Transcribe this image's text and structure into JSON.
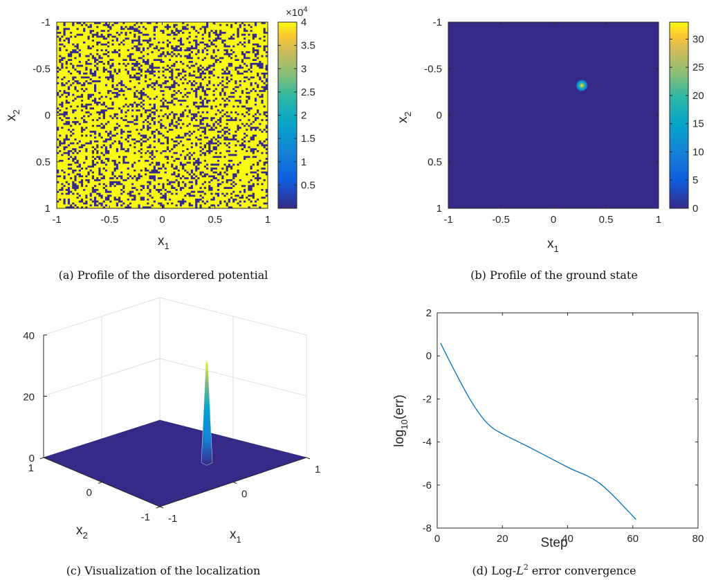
{
  "captions": {
    "a": "(a) Profile of the disordered potential",
    "b": "(b) Profile of the ground state",
    "c": "(c) Visualization of the localization",
    "d_prefix": "(d) Log-",
    "d_var": "L",
    "d_sup": "2",
    "d_suffix": " error convergence"
  },
  "colors": {
    "parula_low": "#352a87",
    "parula_high": "#f9fb0e",
    "line": "#0072bd",
    "axis": "#262626",
    "grid": "#dfdfdf"
  },
  "chart_data": [
    {
      "id": "a",
      "type": "heatmap",
      "xlabel_main": "x",
      "xlabel_sub": "1",
      "ylabel_main": "x",
      "ylabel_sub": "2",
      "xlim": [
        -1,
        1
      ],
      "ylim": [
        -1,
        1
      ],
      "y_reversed": true,
      "xticks": [
        "-1",
        "-0.5",
        "0",
        "0.5",
        "1"
      ],
      "yticks": [
        "-1",
        "-0.5",
        "0",
        "0.5",
        "1"
      ],
      "colorbar": {
        "range": [
          1,
          40000
        ],
        "ticks": [
          "0.5",
          "1",
          "1.5",
          "2",
          "2.5",
          "3",
          "3.5",
          "4"
        ],
        "tick_values": [
          0.5,
          1,
          1.5,
          2,
          2.5,
          3,
          3.5,
          4
        ],
        "scale_label": "×10",
        "scale_exp": "4"
      },
      "values_description_fraction_high": 0.72,
      "high_value": 40000,
      "low_value": 1
    },
    {
      "id": "b",
      "type": "heatmap",
      "xlabel_main": "x",
      "xlabel_sub": "1",
      "ylabel_main": "x",
      "ylabel_sub": "2",
      "xlim": [
        -1,
        1
      ],
      "ylim": [
        -1,
        1
      ],
      "y_reversed": true,
      "xticks": [
        "-1",
        "-0.5",
        "0",
        "0.5",
        "1"
      ],
      "yticks": [
        "-1",
        "-0.5",
        "0",
        "0.5",
        "1"
      ],
      "colorbar": {
        "range": [
          0,
          33
        ],
        "ticks": [
          "0",
          "5",
          "10",
          "15",
          "20",
          "25",
          "30"
        ],
        "tick_values": [
          0,
          5,
          10,
          15,
          20,
          25,
          30
        ]
      },
      "peak": {
        "x1": 0.27,
        "x2": -0.32,
        "value": 33
      }
    },
    {
      "id": "c",
      "type": "surface",
      "xlabel_main": "x",
      "xlabel_sub": "1",
      "ylabel_main": "x",
      "ylabel_sub": "2",
      "x1_ticks": [
        "-1",
        "0",
        "1"
      ],
      "x2_ticks": [
        "1",
        "0",
        "-1"
      ],
      "z_ticks": [
        "0",
        "20",
        "40"
      ],
      "zlim": [
        0,
        40
      ],
      "peak": {
        "x1": 0.27,
        "x2": -0.32,
        "value": 33
      }
    },
    {
      "id": "d",
      "type": "line",
      "xlabel": "Step",
      "ylabel_prefix": "log",
      "ylabel_sub": "10",
      "ylabel_suffix": "(err)",
      "xlim": [
        0,
        80
      ],
      "ylim": [
        -8,
        2
      ],
      "xticks": [
        "0",
        "20",
        "40",
        "60",
        "80"
      ],
      "yticks": [
        "-8",
        "-6",
        "-4",
        "-2",
        "0",
        "2"
      ],
      "series": [
        {
          "x": [
            1,
            5,
            10,
            14,
            17,
            20,
            25,
            30,
            40,
            50,
            61
          ],
          "y": [
            0.6,
            -0.6,
            -2.0,
            -2.9,
            -3.35,
            -3.62,
            -4.0,
            -4.38,
            -5.17,
            -5.94,
            -7.6
          ]
        }
      ]
    }
  ]
}
